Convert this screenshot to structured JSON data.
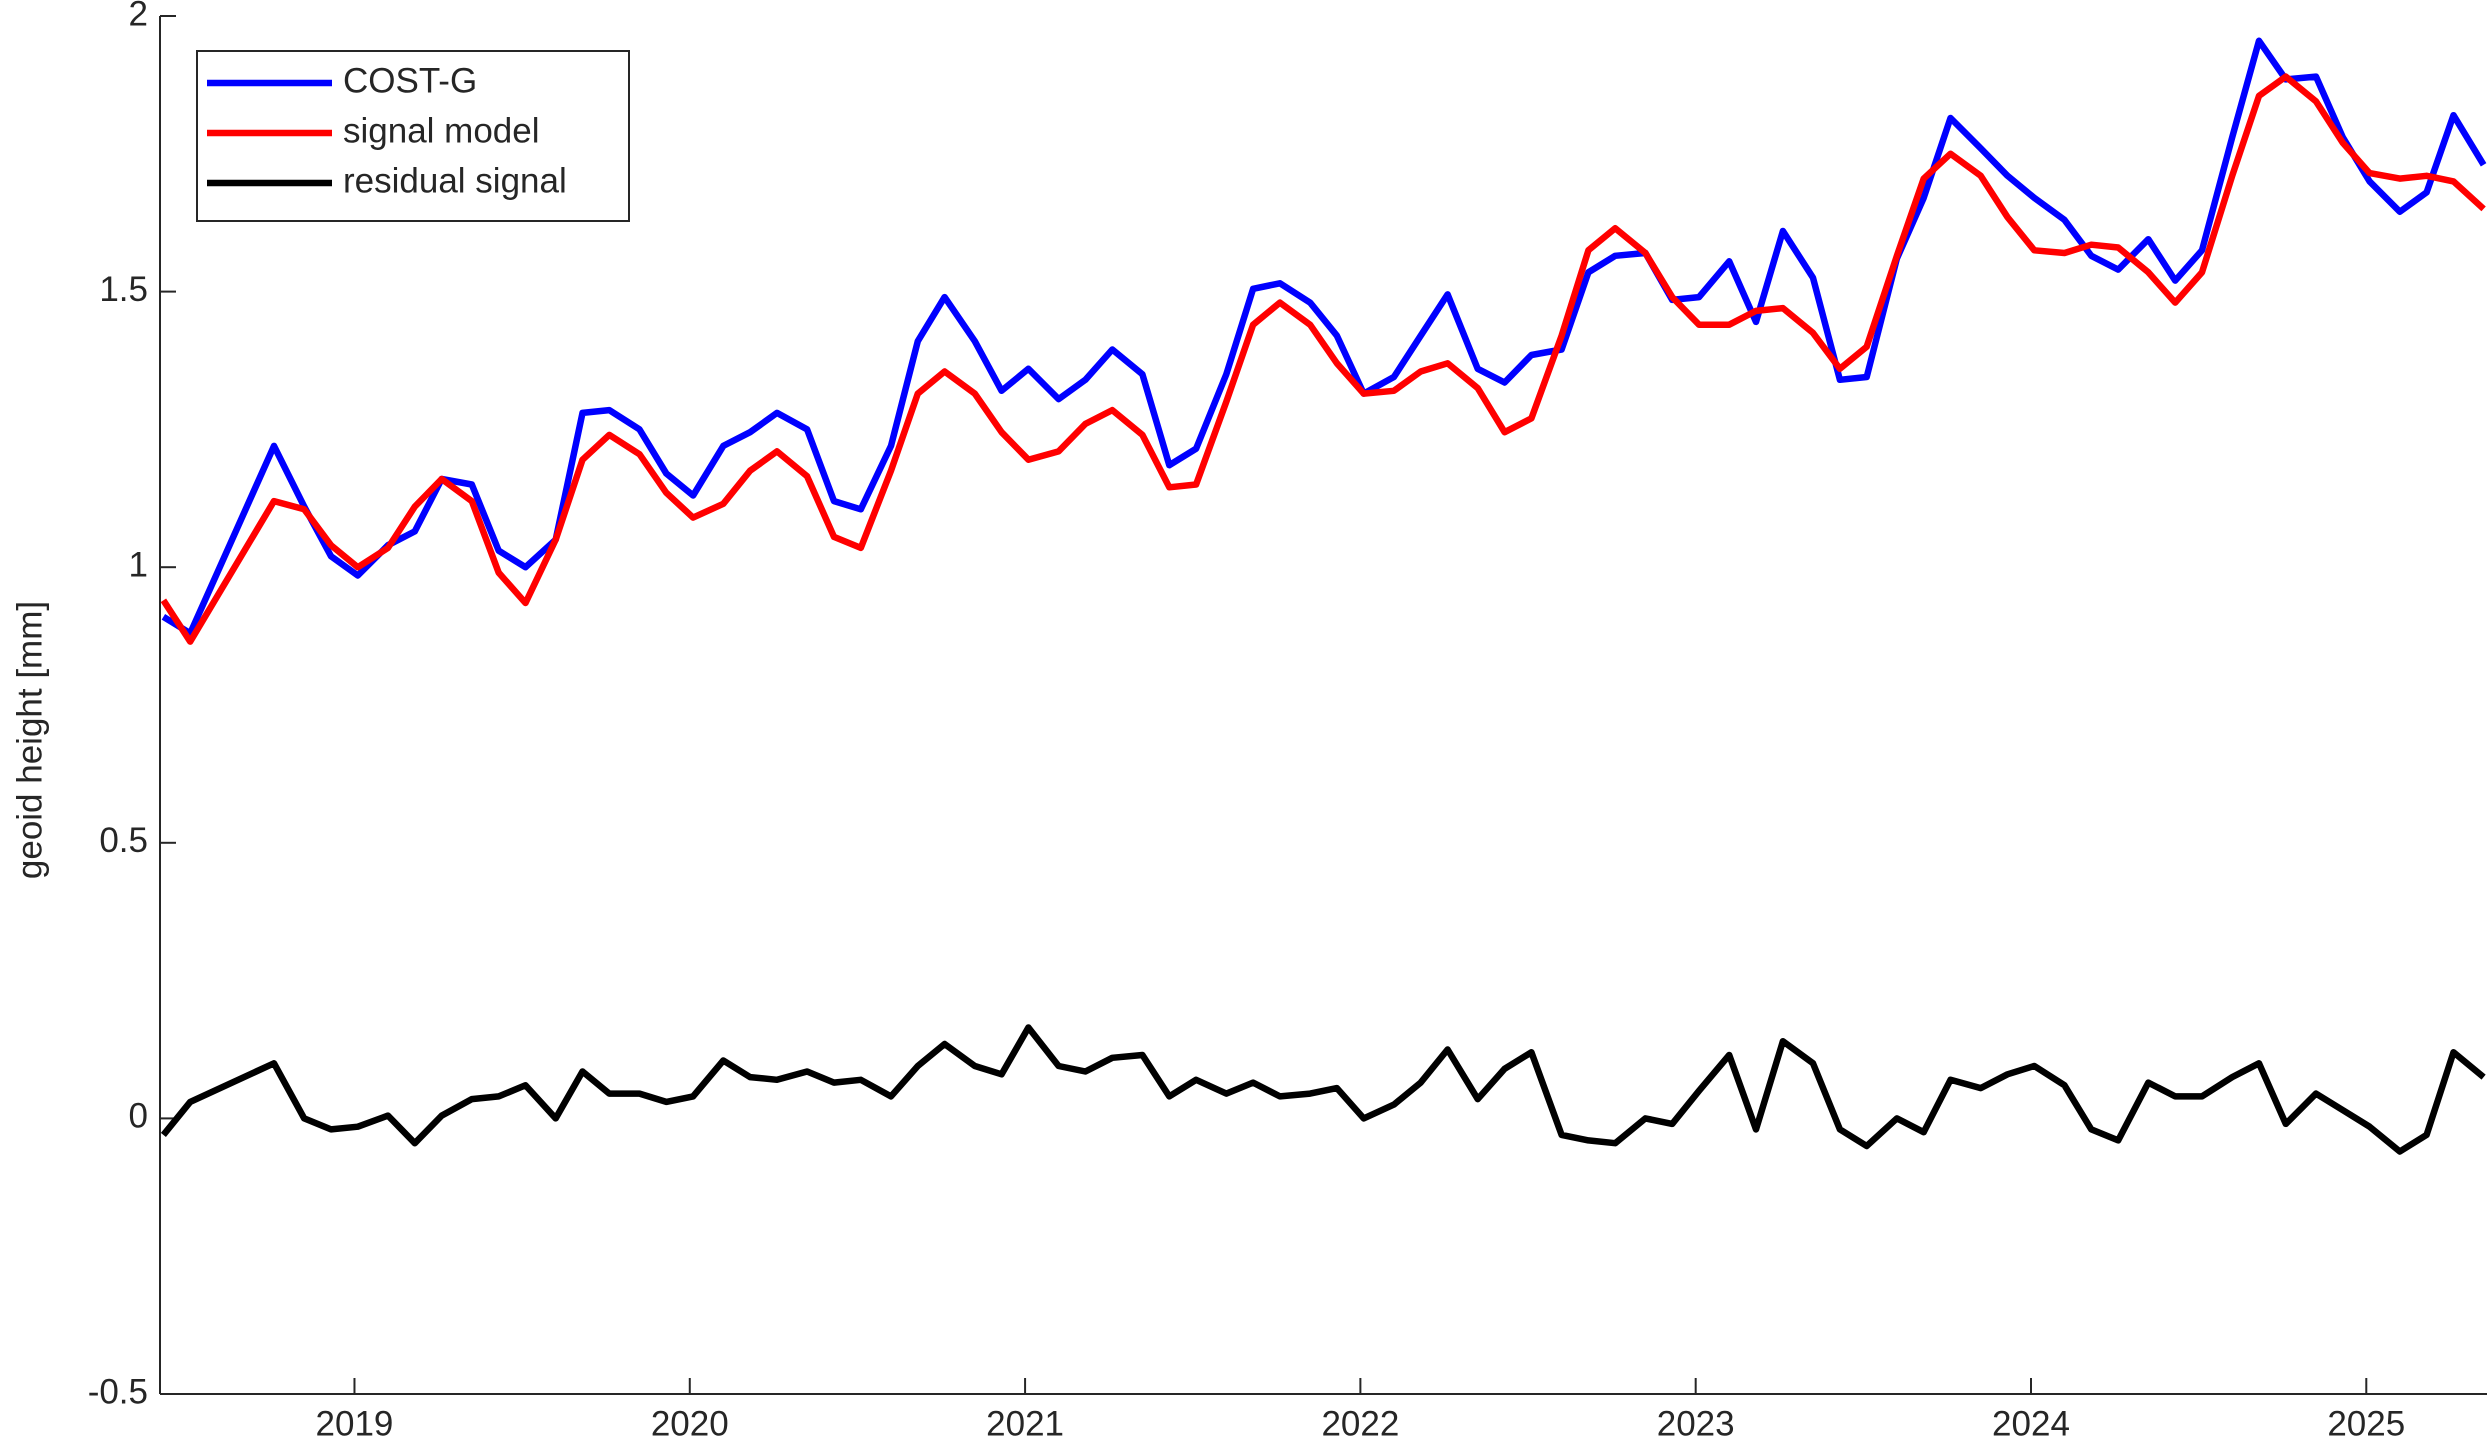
{
  "chart_data": {
    "type": "line",
    "ylabel": "geoid height [mm]",
    "x": [
      2018.43,
      2018.51,
      2018.76,
      2018.85,
      2018.93,
      2019.01,
      2019.1,
      2019.18,
      2019.26,
      2019.35,
      2019.43,
      2019.51,
      2019.6,
      2019.68,
      2019.76,
      2019.85,
      2019.93,
      2020.01,
      2020.1,
      2020.18,
      2020.26,
      2020.35,
      2020.43,
      2020.51,
      2020.6,
      2020.68,
      2020.76,
      2020.85,
      2020.93,
      2021.01,
      2021.1,
      2021.18,
      2021.26,
      2021.35,
      2021.43,
      2021.51,
      2021.6,
      2021.68,
      2021.76,
      2021.85,
      2021.93,
      2022.01,
      2022.1,
      2022.18,
      2022.26,
      2022.35,
      2022.43,
      2022.51,
      2022.6,
      2022.68,
      2022.76,
      2022.85,
      2022.93,
      2023.01,
      2023.1,
      2023.18,
      2023.26,
      2023.35,
      2023.43,
      2023.51,
      2023.6,
      2023.68,
      2023.76,
      2023.85,
      2023.93,
      2024.01,
      2024.1,
      2024.18,
      2024.26,
      2024.35,
      2024.43,
      2024.51,
      2024.6,
      2024.68,
      2024.76,
      2024.85,
      2024.93,
      2025.01,
      2025.1,
      2025.18,
      2025.26,
      2025.35
    ],
    "series": [
      {
        "name": "COST-G",
        "color": "#0000ff",
        "values": [
          0.91,
          0.88,
          1.22,
          1.11,
          1.02,
          0.985,
          1.04,
          1.065,
          1.16,
          1.15,
          1.03,
          1.0,
          1.05,
          1.28,
          1.285,
          1.25,
          1.17,
          1.13,
          1.22,
          1.245,
          1.28,
          1.25,
          1.12,
          1.105,
          1.22,
          1.41,
          1.49,
          1.41,
          1.32,
          1.36,
          1.305,
          1.34,
          1.395,
          1.35,
          1.185,
          1.215,
          1.35,
          1.505,
          1.515,
          1.48,
          1.42,
          1.315,
          1.345,
          1.42,
          1.495,
          1.36,
          1.335,
          1.385,
          1.395,
          1.535,
          1.565,
          1.57,
          1.485,
          1.49,
          1.555,
          1.445,
          1.61,
          1.525,
          1.34,
          1.345,
          1.56,
          1.67,
          1.815,
          1.76,
          1.71,
          1.67,
          1.63,
          1.565,
          1.54,
          1.595,
          1.52,
          1.575,
          1.78,
          1.955,
          1.885,
          1.89,
          1.78,
          1.7,
          1.645,
          1.68,
          1.82,
          1.73
        ]
      },
      {
        "name": "signal model",
        "color": "#ff0000",
        "values": [
          0.94,
          0.865,
          1.12,
          1.105,
          1.04,
          1.0,
          1.035,
          1.11,
          1.16,
          1.12,
          0.99,
          0.935,
          1.05,
          1.195,
          1.24,
          1.205,
          1.135,
          1.09,
          1.115,
          1.175,
          1.21,
          1.165,
          1.055,
          1.035,
          1.175,
          1.315,
          1.355,
          1.315,
          1.245,
          1.195,
          1.21,
          1.26,
          1.285,
          1.24,
          1.145,
          1.15,
          1.3,
          1.44,
          1.48,
          1.44,
          1.37,
          1.315,
          1.32,
          1.355,
          1.37,
          1.325,
          1.245,
          1.27,
          1.42,
          1.575,
          1.615,
          1.57,
          1.49,
          1.44,
          1.44,
          1.465,
          1.47,
          1.425,
          1.36,
          1.4,
          1.565,
          1.705,
          1.75,
          1.71,
          1.635,
          1.575,
          1.57,
          1.585,
          1.58,
          1.535,
          1.48,
          1.535,
          1.71,
          1.855,
          1.89,
          1.845,
          1.77,
          1.715,
          1.705,
          1.71,
          1.7,
          1.65
        ]
      },
      {
        "name": "residual signal",
        "color": "#000000",
        "values": [
          -0.03,
          0.03,
          0.1,
          0.0,
          -0.02,
          -0.015,
          0.005,
          -0.045,
          0.005,
          0.035,
          0.04,
          0.06,
          0.0,
          0.085,
          0.045,
          0.045,
          0.03,
          0.04,
          0.105,
          0.075,
          0.07,
          0.085,
          0.065,
          0.07,
          0.04,
          0.095,
          0.135,
          0.095,
          0.08,
          0.165,
          0.095,
          0.085,
          0.11,
          0.115,
          0.04,
          0.07,
          0.045,
          0.065,
          0.04,
          0.045,
          0.055,
          0.0,
          0.025,
          0.065,
          0.125,
          0.035,
          0.09,
          0.12,
          -0.03,
          -0.04,
          -0.045,
          0.0,
          -0.01,
          0.05,
          0.115,
          -0.02,
          0.14,
          0.1,
          -0.02,
          -0.05,
          0.0,
          -0.025,
          0.07,
          0.055,
          0.08,
          0.095,
          0.06,
          -0.02,
          -0.04,
          0.065,
          0.04,
          0.04,
          0.075,
          0.1,
          -0.01,
          0.045,
          0.015,
          -0.015,
          -0.06,
          -0.03,
          0.12,
          0.075
        ]
      }
    ],
    "xlim": [
      2018.42,
      2025.36
    ],
    "xticks": [
      2019,
      2020,
      2021,
      2022,
      2023,
      2024,
      2025
    ],
    "ylim": [
      -0.5,
      2
    ],
    "yticks": [
      -0.5,
      0,
      0.5,
      1,
      1.5,
      2
    ],
    "legend": "upper left"
  }
}
